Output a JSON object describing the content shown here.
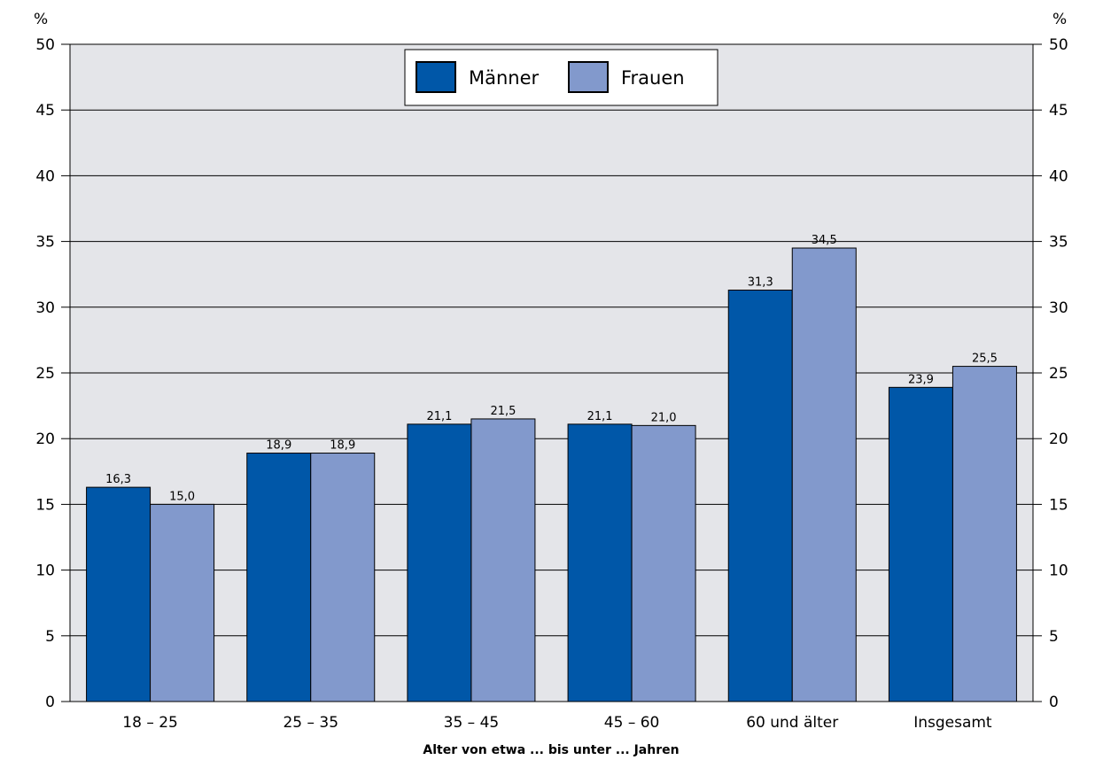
{
  "chart_data": {
    "type": "bar",
    "categories": [
      "18 – 25",
      "25 – 35",
      "35 – 45",
      "45 – 60",
      "60 und älter",
      "Insgesamt"
    ],
    "series": [
      {
        "name": "Männer",
        "values": [
          16.3,
          18.9,
          21.1,
          21.1,
          31.3,
          23.9
        ],
        "labels": [
          "16,3",
          "18,9",
          "21,1",
          "21,1",
          "31,3",
          "23,9"
        ],
        "color": "#0057a8"
      },
      {
        "name": "Frauen",
        "values": [
          15.0,
          18.9,
          21.5,
          21.0,
          34.5,
          25.5
        ],
        "labels": [
          "15,0",
          "18,9",
          "21,5",
          "21,0",
          "34,5",
          "25,5"
        ],
        "color": "#8299cc"
      }
    ],
    "xlabel": "Alter von etwa ... bis unter ... Jahren",
    "ylabel_left": "%",
    "ylabel_right": "%",
    "ylim": [
      0,
      50
    ],
    "yticks": [
      0,
      5,
      10,
      15,
      20,
      25,
      30,
      35,
      40,
      45,
      50
    ],
    "grid": true,
    "legend_position": "top-center",
    "plot_background": "#e4e5e9"
  }
}
